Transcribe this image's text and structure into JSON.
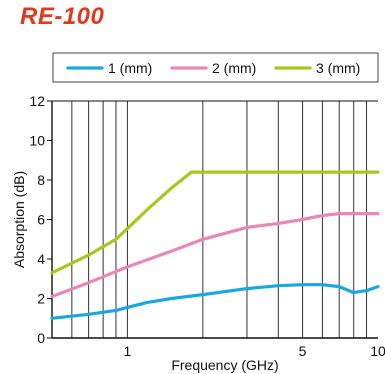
{
  "title": "RE-100",
  "colors": {
    "title": "#e03a1e",
    "series_1": "#1aa7e0",
    "series_2": "#e888b4",
    "series_3": "#a4c81e"
  },
  "chart_data": {
    "type": "line",
    "xlabel": "Frequency (GHz)",
    "ylabel": "Absorption (dB)",
    "xscale": "log",
    "xlim": [
      0.5,
      10
    ],
    "ylim": [
      0,
      12
    ],
    "xticks": [
      {
        "value": 1,
        "label": "1"
      },
      {
        "value": 5,
        "label": "5"
      },
      {
        "value": 10,
        "label": "10"
      }
    ],
    "yticks": [
      0,
      2,
      4,
      6,
      8,
      10,
      12
    ],
    "x_minor_gridlines": [
      0.6,
      0.7,
      0.8,
      0.9,
      2,
      3,
      4,
      6,
      7,
      8,
      9
    ],
    "grid": "vertical",
    "legend": "top, boxed",
    "series": [
      {
        "name": "1 (mm)",
        "color": "#1aa7e0",
        "points": [
          [
            0.5,
            1.0
          ],
          [
            0.7,
            1.2
          ],
          [
            0.9,
            1.4
          ],
          [
            1.2,
            1.8
          ],
          [
            1.5,
            2.0
          ],
          [
            2.0,
            2.2
          ],
          [
            3.0,
            2.5
          ],
          [
            4.0,
            2.65
          ],
          [
            5.0,
            2.7
          ],
          [
            6.0,
            2.7
          ],
          [
            7.0,
            2.6
          ],
          [
            8.0,
            2.3
          ],
          [
            9.0,
            2.4
          ],
          [
            10.0,
            2.6
          ]
        ]
      },
      {
        "name": "2 (mm)",
        "color": "#e888b4",
        "points": [
          [
            0.5,
            2.1
          ],
          [
            0.7,
            2.8
          ],
          [
            1.0,
            3.6
          ],
          [
            1.5,
            4.4
          ],
          [
            2.0,
            5.0
          ],
          [
            3.0,
            5.6
          ],
          [
            4.0,
            5.8
          ],
          [
            5.0,
            6.0
          ],
          [
            6.0,
            6.2
          ],
          [
            7.0,
            6.3
          ],
          [
            8.0,
            6.3
          ],
          [
            10.0,
            6.3
          ]
        ]
      },
      {
        "name": "3 (mm)",
        "color": "#a4c81e",
        "points": [
          [
            0.5,
            3.3
          ],
          [
            0.7,
            4.2
          ],
          [
            0.9,
            5.0
          ],
          [
            1.2,
            6.5
          ],
          [
            1.5,
            7.6
          ],
          [
            1.8,
            8.4
          ],
          [
            2.0,
            8.4
          ],
          [
            5.0,
            8.4
          ],
          [
            10.0,
            8.4
          ]
        ]
      }
    ]
  }
}
